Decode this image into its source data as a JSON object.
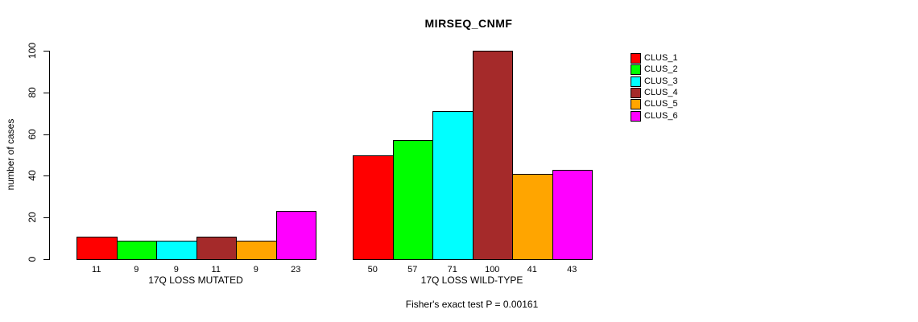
{
  "title": "MIRSEQ_CNMF",
  "chart_data": {
    "type": "bar",
    "title": "MIRSEQ_CNMF",
    "ylabel": "number of cases",
    "xlabel": "",
    "ylim": [
      0,
      100
    ],
    "yticks": [
      0,
      20,
      40,
      60,
      80,
      100
    ],
    "grid": "off",
    "legend_position": "right",
    "groups": [
      {
        "label": "17Q LOSS MUTATED",
        "values": [
          11,
          9,
          9,
          11,
          9,
          23
        ]
      },
      {
        "label": "17Q LOSS WILD-TYPE",
        "values": [
          50,
          57,
          71,
          100,
          41,
          43
        ]
      }
    ],
    "series_colors": [
      "#FF0000",
      "#00FF00",
      "#00FFFF",
      "#A52A2A",
      "#FFA500",
      "#FF00FF"
    ],
    "legend": [
      {
        "label": "CLUS_1",
        "color": "#FF0000"
      },
      {
        "label": "CLUS_2",
        "color": "#00FF00"
      },
      {
        "label": "CLUS_3",
        "color": "#00FFFF"
      },
      {
        "label": "CLUS_4",
        "color": "#A52A2A"
      },
      {
        "label": "CLUS_5",
        "color": "#FFA500"
      },
      {
        "label": "CLUS_6",
        "color": "#FF00FF"
      }
    ],
    "caption": "Fisher's exact test P = 0.00161"
  }
}
